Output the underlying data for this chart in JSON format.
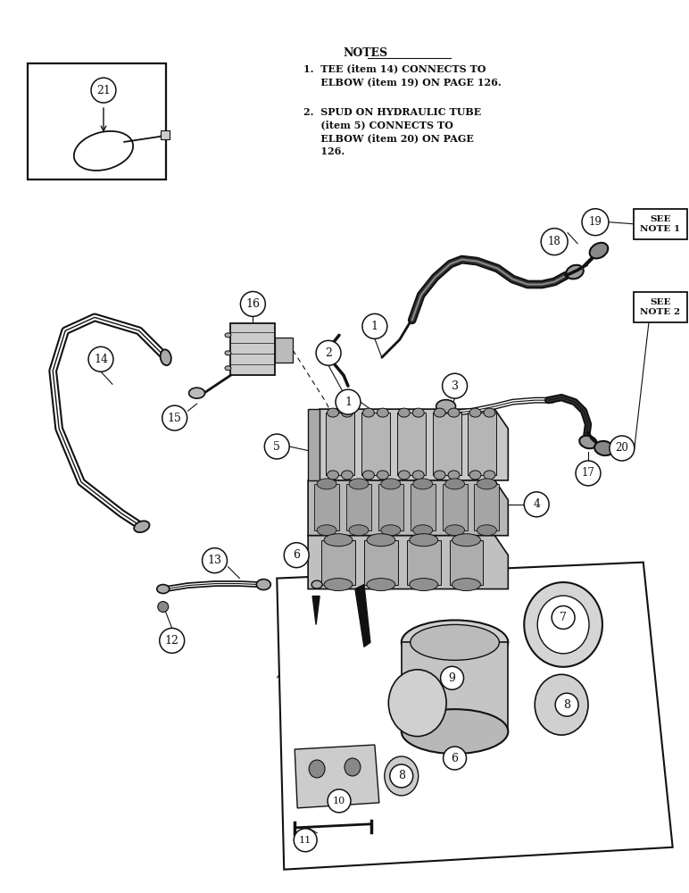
{
  "bg": "#ffffff",
  "lc": "#111111",
  "notes_title": "NOTES",
  "note1": "1.  TEE (item 14) CONNECTS TO\n     ELBOW (item 19) ON PAGE 126.",
  "note2": "2.  SPUD ON HYDRAULIC TUBE\n     (item 5) CONNECTS TO\n     ELBOW (item 20) ON PAGE\n     126.",
  "see_note1": "SEE\nNOTE 1",
  "see_note2": "SEE\nNOTE 2"
}
